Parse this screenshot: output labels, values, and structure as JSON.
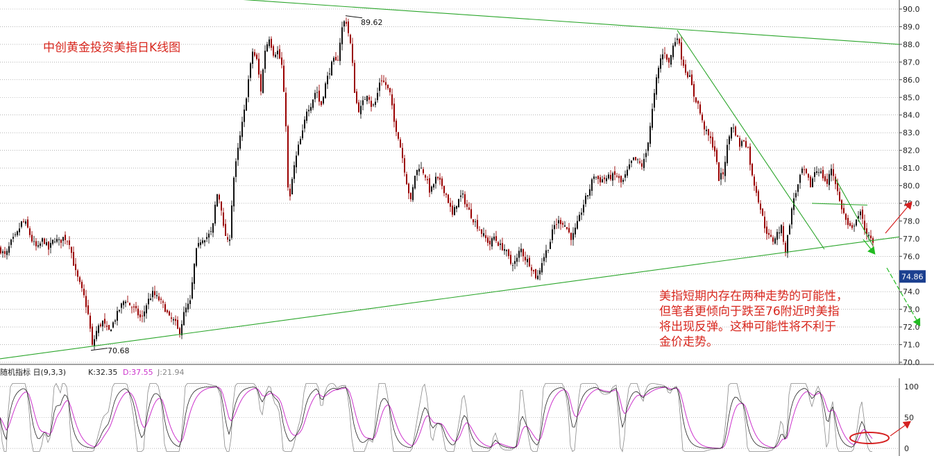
{
  "chart_data": [
    {
      "type": "candlestick",
      "title": "中创黄金投资美指日K线图",
      "ylim": [
        70.0,
        90.0
      ],
      "y_ticks": [
        "90.0",
        "89.0",
        "88.0",
        "87.0",
        "86.0",
        "85.0",
        "84.0",
        "83.0",
        "82.0",
        "81.0",
        "80.0",
        "79.0",
        "78.0",
        "77.0",
        "76.0",
        "75.0",
        "74.0",
        "73.0",
        "72.0",
        "71.0",
        "70.0"
      ],
      "grid": true,
      "current_price": "74.86",
      "annotations": {
        "high": "89.62",
        "low": "70.68"
      },
      "note_lines": [
        "美指短期内存在两种走势的可能性，",
        "但笔者更倾向于跌至76附近时美指",
        "将出现反弹。这种可能性将不利于",
        "金价走势。"
      ],
      "close_path": [
        [
          0,
          76.4
        ],
        [
          8,
          76.0
        ],
        [
          16,
          76.8
        ],
        [
          24,
          77.2
        ],
        [
          32,
          78.0
        ],
        [
          38,
          77.8
        ],
        [
          46,
          76.9
        ],
        [
          54,
          76.4
        ],
        [
          62,
          77.0
        ],
        [
          70,
          76.4
        ],
        [
          78,
          77.0
        ],
        [
          86,
          76.8
        ],
        [
          92,
          77.1
        ],
        [
          100,
          76.8
        ],
        [
          108,
          75.2
        ],
        [
          116,
          74.3
        ],
        [
          122,
          73.6
        ],
        [
          128,
          72.5
        ],
        [
          133,
          70.9
        ],
        [
          140,
          71.9
        ],
        [
          148,
          72.3
        ],
        [
          156,
          71.7
        ],
        [
          164,
          72.3
        ],
        [
          172,
          73.0
        ],
        [
          180,
          73.6
        ],
        [
          188,
          73.2
        ],
        [
          196,
          72.9
        ],
        [
          204,
          72.4
        ],
        [
          212,
          73.4
        ],
        [
          220,
          73.9
        ],
        [
          228,
          73.6
        ],
        [
          236,
          73.2
        ],
        [
          244,
          72.5
        ],
        [
          252,
          72.3
        ],
        [
          258,
          71.6
        ],
        [
          266,
          72.9
        ],
        [
          274,
          73.4
        ],
        [
          282,
          76.2
        ],
        [
          290,
          77.0
        ],
        [
          298,
          77.1
        ],
        [
          306,
          77.4
        ],
        [
          312,
          79.6
        ],
        [
          318,
          79.1
        ],
        [
          322,
          77.6
        ],
        [
          330,
          76.5
        ],
        [
          336,
          80.2
        ],
        [
          344,
          82.3
        ],
        [
          352,
          84.2
        ],
        [
          358,
          86.0
        ],
        [
          364,
          87.6
        ],
        [
          370,
          87.1
        ],
        [
          376,
          85.4
        ],
        [
          382,
          87.7
        ],
        [
          388,
          88.4
        ],
        [
          394,
          87.5
        ],
        [
          400,
          87.6
        ],
        [
          406,
          86.8
        ],
        [
          412,
          83.5
        ],
        [
          416,
          78.6
        ],
        [
          422,
          80.7
        ],
        [
          430,
          82.2
        ],
        [
          436,
          83.0
        ],
        [
          442,
          84.3
        ],
        [
          448,
          84.6
        ],
        [
          456,
          85.5
        ],
        [
          462,
          84.4
        ],
        [
          468,
          85.6
        ],
        [
          474,
          86.4
        ],
        [
          480,
          87.1
        ],
        [
          486,
          86.9
        ],
        [
          492,
          88.8
        ],
        [
          498,
          89.5
        ],
        [
          506,
          87.8
        ],
        [
          512,
          84.9
        ],
        [
          518,
          84.2
        ],
        [
          524,
          84.8
        ],
        [
          530,
          85.3
        ],
        [
          536,
          84.4
        ],
        [
          542,
          84.8
        ],
        [
          548,
          86.1
        ],
        [
          556,
          85.7
        ],
        [
          562,
          85.2
        ],
        [
          568,
          83.6
        ],
        [
          574,
          82.8
        ],
        [
          580,
          81.6
        ],
        [
          586,
          80.2
        ],
        [
          592,
          79.1
        ],
        [
          598,
          80.6
        ],
        [
          604,
          81.1
        ],
        [
          612,
          80.7
        ],
        [
          620,
          79.6
        ],
        [
          628,
          80.4
        ],
        [
          636,
          80.1
        ],
        [
          644,
          79.4
        ],
        [
          652,
          78.3
        ],
        [
          658,
          79.0
        ],
        [
          666,
          79.5
        ],
        [
          674,
          78.7
        ],
        [
          682,
          78.1
        ],
        [
          690,
          77.6
        ],
        [
          698,
          77.1
        ],
        [
          706,
          76.7
        ],
        [
          712,
          77.1
        ],
        [
          720,
          76.6
        ],
        [
          728,
          76.4
        ],
        [
          736,
          75.6
        ],
        [
          744,
          75.7
        ],
        [
          750,
          76.5
        ],
        [
          756,
          75.9
        ],
        [
          762,
          75.7
        ],
        [
          768,
          75.2
        ],
        [
          774,
          74.7
        ],
        [
          780,
          75.6
        ],
        [
          786,
          76.2
        ],
        [
          792,
          76.7
        ],
        [
          798,
          77.7
        ],
        [
          806,
          78.0
        ],
        [
          812,
          77.9
        ],
        [
          818,
          77.5
        ],
        [
          824,
          77.0
        ],
        [
          830,
          77.6
        ],
        [
          836,
          78.3
        ],
        [
          842,
          79.1
        ],
        [
          848,
          79.6
        ],
        [
          856,
          80.6
        ],
        [
          864,
          80.3
        ],
        [
          872,
          80.4
        ],
        [
          880,
          80.5
        ],
        [
          888,
          80.6
        ],
        [
          896,
          80.1
        ],
        [
          904,
          80.8
        ],
        [
          912,
          81.5
        ],
        [
          918,
          81.4
        ],
        [
          926,
          81.1
        ],
        [
          932,
          82.0
        ],
        [
          938,
          83.7
        ],
        [
          946,
          86.0
        ],
        [
          952,
          87.2
        ],
        [
          958,
          87.6
        ],
        [
          964,
          86.9
        ],
        [
          970,
          87.9
        ],
        [
          976,
          88.5
        ],
        [
          982,
          87.3
        ],
        [
          988,
          86.5
        ],
        [
          994,
          86.1
        ],
        [
          1000,
          85.1
        ],
        [
          1006,
          84.6
        ],
        [
          1012,
          83.6
        ],
        [
          1018,
          83.0
        ],
        [
          1024,
          82.6
        ],
        [
          1030,
          82.0
        ],
        [
          1036,
          80.4
        ],
        [
          1042,
          80.7
        ],
        [
          1048,
          82.2
        ],
        [
          1054,
          83.4
        ],
        [
          1060,
          83.0
        ],
        [
          1066,
          82.3
        ],
        [
          1072,
          82.6
        ],
        [
          1078,
          82.1
        ],
        [
          1084,
          80.5
        ],
        [
          1090,
          79.7
        ],
        [
          1096,
          78.7
        ],
        [
          1102,
          77.7
        ],
        [
          1108,
          77.1
        ],
        [
          1114,
          76.9
        ],
        [
          1120,
          77.3
        ],
        [
          1126,
          77.6
        ],
        [
          1132,
          76.3
        ],
        [
          1138,
          77.9
        ],
        [
          1144,
          79.3
        ],
        [
          1150,
          80.0
        ],
        [
          1156,
          80.9
        ],
        [
          1162,
          80.6
        ],
        [
          1168,
          80.0
        ],
        [
          1174,
          80.8
        ],
        [
          1180,
          80.9
        ],
        [
          1186,
          80.5
        ],
        [
          1192,
          80.1
        ],
        [
          1198,
          81.0
        ],
        [
          1204,
          80.2
        ],
        [
          1210,
          79.1
        ],
        [
          1216,
          78.4
        ],
        [
          1222,
          77.7
        ],
        [
          1228,
          77.5
        ],
        [
          1234,
          78.2
        ],
        [
          1240,
          78.4
        ],
        [
          1246,
          77.6
        ],
        [
          1252,
          77.1
        ],
        [
          1258,
          76.7
        ]
      ],
      "trendlines": [
        {
          "from": [
            176,
            91.0
          ],
          "to": [
            1296,
            88.0
          ]
        },
        {
          "from": [
            0,
            70.2
          ],
          "to": [
            1296,
            77.1
          ]
        },
        {
          "from": [
            976,
            88.8
          ],
          "to": [
            1188,
            76.4
          ]
        },
        {
          "from": [
            1170,
            79.0
          ],
          "to": [
            1250,
            78.9
          ]
        },
        {
          "from": [
            1204,
            80.4
          ],
          "to": [
            1258,
            76.6
          ]
        }
      ]
    },
    {
      "type": "line",
      "title": "随机指标 日(9,3,3)",
      "series": [
        {
          "name": "K:32.35",
          "color": "#222222"
        },
        {
          "name": "D:37.55",
          "color": "#cc33cc"
        },
        {
          "name": "J:21.94",
          "color": "#888888"
        }
      ],
      "ylim": [
        -10,
        110
      ],
      "y_ticks": [
        "100",
        "50",
        "0"
      ]
    }
  ],
  "colors": {
    "up": "#111111",
    "down": "#990000",
    "trend": "#2aa52a",
    "arrow_up": "#d52020",
    "arrow_down": "#22bb22",
    "price_box": "#1b3f8f",
    "grid": "#888888",
    "title": "#d8281f"
  }
}
